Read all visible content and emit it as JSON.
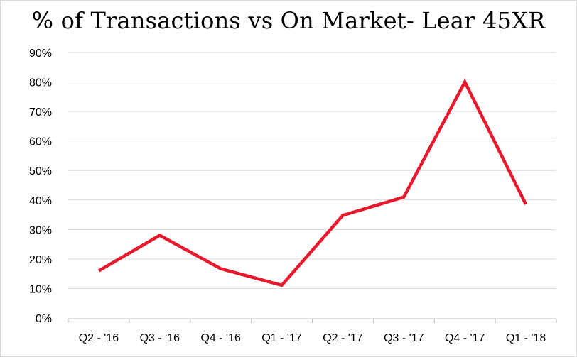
{
  "chart_data": {
    "type": "line",
    "title": "% of Transactions vs On Market- Lear 45XR",
    "xlabel": "",
    "ylabel": "",
    "categories": [
      "Q2 - '16",
      "Q3 - '16",
      "Q4 - '16",
      "Q1 - '17",
      "Q2 - '17",
      "Q3 - '17",
      "Q4 - '17",
      "Q1 - '18"
    ],
    "series": [
      {
        "values": [
          16,
          28,
          16.7,
          11.1,
          34.8,
          41,
          80,
          38.5
        ],
        "color": "#e8192c"
      }
    ],
    "y_ticks": [
      "0%",
      "10%",
      "20%",
      "30%",
      "40%",
      "50%",
      "60%",
      "70%",
      "80%",
      "90%"
    ],
    "ylim": [
      0,
      90
    ],
    "grid": true,
    "legend": "none"
  }
}
